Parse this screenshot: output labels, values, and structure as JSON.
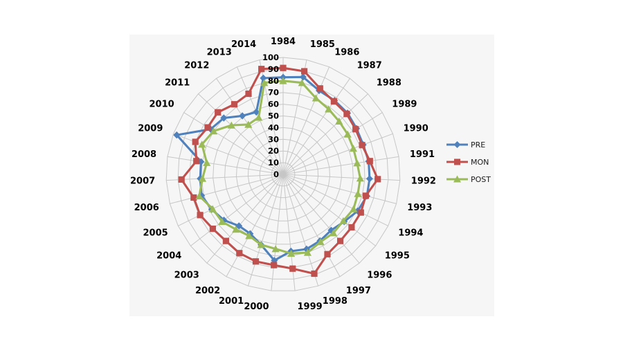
{
  "chart_data": {
    "type": "radar",
    "title": "",
    "categories": [
      "1984",
      "1985",
      "1986",
      "1987",
      "1988",
      "1989",
      "1990",
      "1991",
      "1992",
      "1993",
      "1994",
      "1995",
      "1996",
      "1997",
      "1998",
      "1999",
      "2000",
      "2001",
      "2002",
      "2003",
      "2004",
      "2005",
      "2006",
      "2007",
      "2008",
      "2009",
      "2010",
      "2011",
      "2012",
      "2013",
      "2014"
    ],
    "series": [
      {
        "name": "PRE",
        "marker": "diamond",
        "color": "#4F81BD",
        "values": [
          83,
          85,
          78,
          77,
          76,
          74,
          73,
          74,
          74,
          74,
          71,
          66,
          63,
          65,
          67,
          66,
          74,
          63,
          58,
          58,
          64,
          68,
          72,
          71,
          71,
          97,
          73,
          70,
          61,
          58,
          84
        ]
      },
      {
        "name": "MON",
        "marker": "square",
        "color": "#C0504D",
        "values": [
          91,
          90,
          80,
          76,
          75,
          73,
          72,
          75,
          81,
          73,
          74,
          74,
          75,
          78,
          89,
          81,
          78,
          78,
          77,
          75,
          76,
          79,
          79,
          87,
          75,
          80,
          76,
          77,
          73,
          75,
          92
        ]
      },
      {
        "name": "POST",
        "marker": "triangle",
        "color": "#9BBB59",
        "values": [
          80,
          80,
          71,
          68,
          66,
          65,
          64,
          64,
          66,
          66,
          67,
          65,
          66,
          66,
          70,
          68,
          64,
          63,
          60,
          62,
          66,
          67,
          74,
          69,
          66,
          74,
          70,
          61,
          52,
          53,
          80
        ]
      }
    ],
    "radial_axis": {
      "min": 0,
      "max": 100,
      "step": 10,
      "tick_labels": [
        "0",
        "10",
        "20",
        "30",
        "40",
        "50",
        "60",
        "70",
        "80",
        "90",
        "100"
      ]
    },
    "grid": true,
    "legend_position": "right",
    "colors": {
      "plot_background": "#F6F6F7",
      "page_background": "#FFFFFF",
      "gridline": "#C6C6C6",
      "label_text": "#000000"
    }
  }
}
